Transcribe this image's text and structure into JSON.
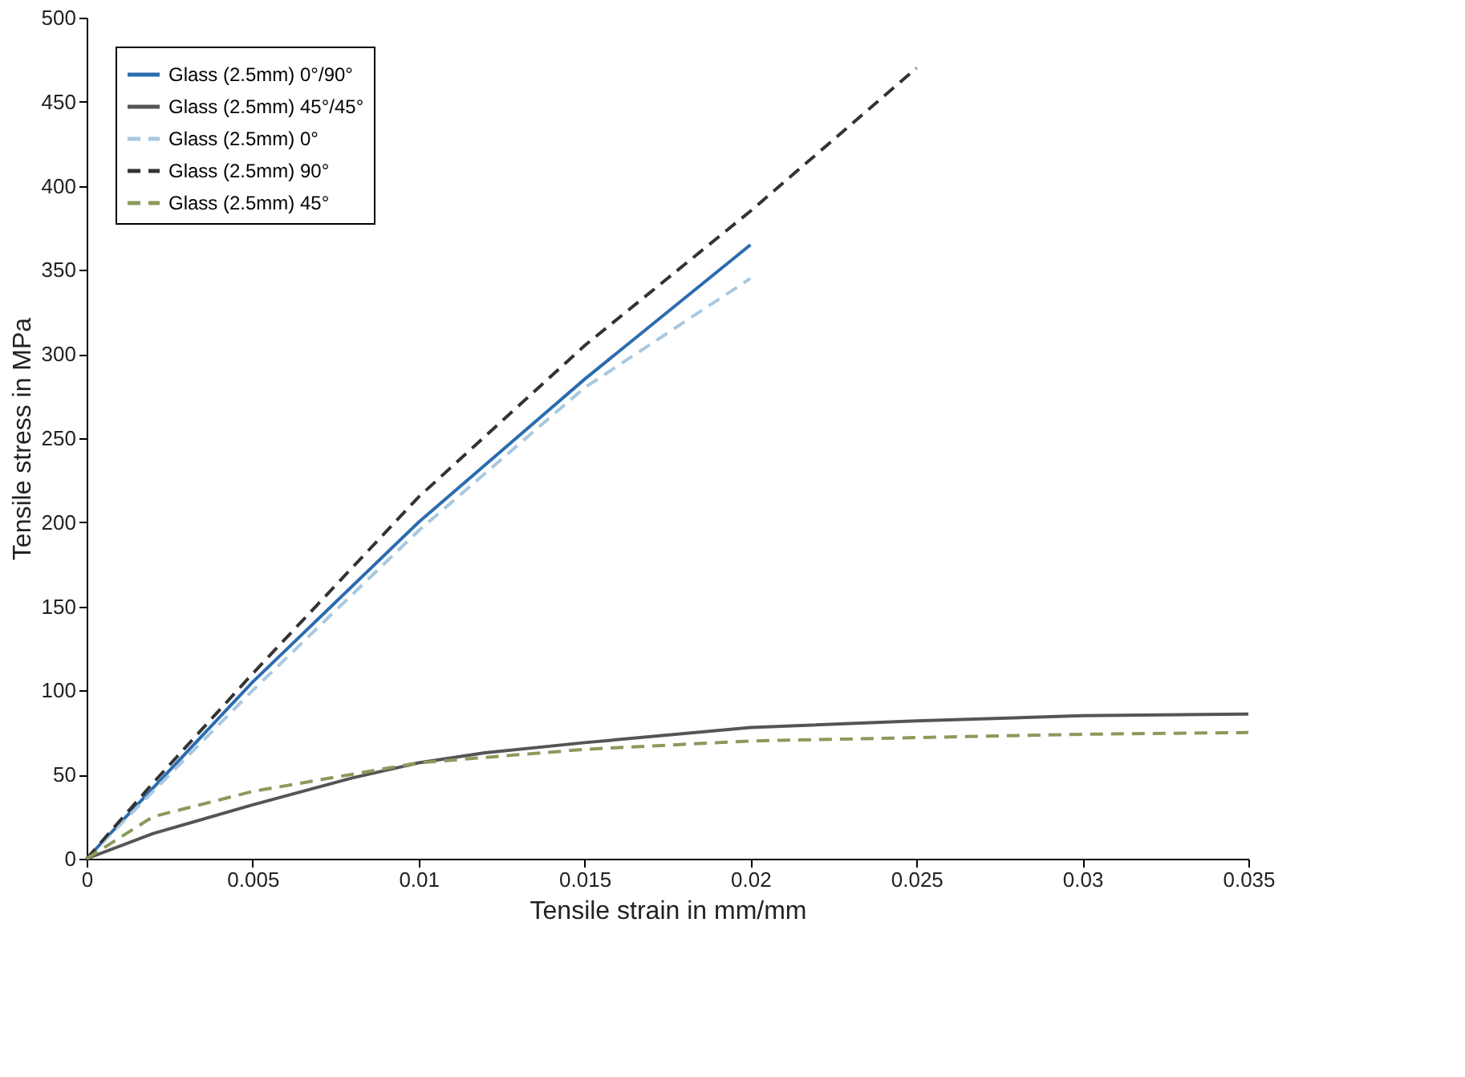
{
  "chart_data": {
    "type": "line",
    "xlabel": "Tensile strain in mm/mm",
    "ylabel": "Tensile stress in MPa",
    "xlim": [
      0,
      0.035
    ],
    "xticks": [
      0,
      0.005,
      0.01,
      0.015,
      0.02,
      0.025,
      0.03,
      0.035
    ],
    "ylim": [
      0,
      500
    ],
    "yticks": [
      0,
      50,
      100,
      150,
      200,
      250,
      300,
      350,
      400,
      450,
      500
    ],
    "grid": false,
    "legend": "top left",
    "marker": "none",
    "series": [
      {
        "name": "Glass (2.5mm) 0°/90°",
        "color": "#2b6cb0",
        "line_style": "solid",
        "x": [
          0,
          0.005,
          0.01,
          0.015,
          0.02
        ],
        "values": [
          0,
          105,
          200,
          285,
          365
        ]
      },
      {
        "name": "Glass (2.5mm) 45°/45°",
        "color": "#555555",
        "line_style": "solid",
        "x": [
          0,
          0.002,
          0.005,
          0.008,
          0.01,
          0.012,
          0.015,
          0.02,
          0.025,
          0.03,
          0.035
        ],
        "values": [
          0,
          15,
          32,
          48,
          57,
          63,
          69,
          78,
          82,
          85,
          86
        ]
      },
      {
        "name": "Glass (2.5mm) 0°",
        "color": "#a8c8e0",
        "line_style": "dashed",
        "x": [
          0,
          0.005,
          0.01,
          0.015,
          0.02
        ],
        "values": [
          0,
          100,
          195,
          280,
          345
        ]
      },
      {
        "name": "Glass (2.5mm) 90°",
        "color": "#333333",
        "line_style": "dashed",
        "x": [
          0,
          0.002,
          0.005,
          0.01,
          0.015,
          0.02,
          0.025
        ],
        "values": [
          0,
          45,
          110,
          215,
          305,
          385,
          470
        ]
      },
      {
        "name": "Glass (2.5mm) 45°",
        "color": "#8a9a5b",
        "line_style": "dashed",
        "x": [
          0,
          0.002,
          0.005,
          0.01,
          0.015,
          0.02,
          0.025,
          0.03,
          0.035
        ],
        "values": [
          0,
          25,
          40,
          57,
          65,
          70,
          72,
          74,
          75
        ]
      }
    ]
  }
}
